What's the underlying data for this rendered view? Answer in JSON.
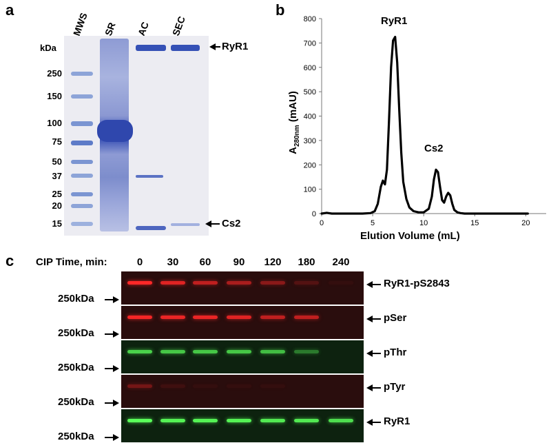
{
  "panel_a": {
    "letter": "a",
    "lanes": [
      "MWS",
      "SR",
      "AC",
      "SEC"
    ],
    "unit_label": "kDa",
    "markers": [
      "250",
      "150",
      "100",
      "75",
      "50",
      "37",
      "25",
      "20",
      "15"
    ],
    "annotations": [
      "RyR1",
      "Cs2"
    ]
  },
  "panel_b": {
    "letter": "b",
    "ylabel_main": "A",
    "ylabel_sub": "280nm",
    "ylabel_unit": " (mAU)",
    "xlabel": "Elution Volume (mL)",
    "peak_labels": [
      "RyR1",
      "Cs2"
    ],
    "chart_data": {
      "type": "line",
      "xlim": [
        0,
        22
      ],
      "ylim": [
        0,
        800
      ],
      "x_ticks": [
        "0",
        "5",
        "10",
        "15",
        "20"
      ],
      "y_ticks": [
        "0",
        "100",
        "200",
        "300",
        "400",
        "500",
        "600",
        "700",
        "800"
      ],
      "series": [
        {
          "x": [
            0,
            0.5,
            1,
            2,
            3,
            4,
            4.8,
            5.2,
            5.5,
            5.8,
            6.0,
            6.2,
            6.4,
            6.6,
            6.8,
            7.0,
            7.2,
            7.4,
            7.6,
            7.8,
            8.0,
            8.3,
            8.6,
            9.0,
            9.5,
            10.0,
            10.5,
            10.8,
            11.0,
            11.2,
            11.4,
            11.6,
            11.8,
            12.0,
            12.2,
            12.4,
            12.6,
            12.8,
            13.0,
            13.3,
            13.6,
            14.0,
            15.0,
            17.0,
            19.0,
            20.2
          ],
          "y": [
            0,
            3,
            0,
            0,
            0,
            0,
            2,
            10,
            40,
            110,
            135,
            120,
            180,
            380,
            600,
            710,
            725,
            620,
            430,
            250,
            130,
            60,
            25,
            10,
            5,
            5,
            20,
            70,
            140,
            180,
            170,
            110,
            55,
            45,
            70,
            85,
            75,
            40,
            15,
            5,
            2,
            0,
            0,
            0,
            0,
            0
          ]
        }
      ]
    }
  },
  "panel_c": {
    "letter": "c",
    "cip_label": "CIP Time, min:",
    "times": [
      "0",
      "30",
      "60",
      "90",
      "120",
      "180",
      "240"
    ],
    "kda_label": "250kDa",
    "blots": [
      {
        "label": "RyR1-pS2843",
        "color": "red",
        "intensities": [
          1.0,
          0.85,
          0.7,
          0.6,
          0.45,
          0.2,
          0.05
        ]
      },
      {
        "label": "pSer",
        "color": "red",
        "intensities": [
          0.95,
          0.9,
          0.9,
          0.85,
          0.7,
          0.7,
          0.0
        ]
      },
      {
        "label": "pThr",
        "color": "green",
        "intensities": [
          0.8,
          0.75,
          0.75,
          0.75,
          0.7,
          0.4,
          0.0
        ]
      },
      {
        "label": "pTyr",
        "color": "red",
        "intensities": [
          0.35,
          0.1,
          0.05,
          0.05,
          0.05,
          0.0,
          0.0
        ]
      },
      {
        "label": "RyR1",
        "color": "green",
        "intensities": [
          1.0,
          0.95,
          0.95,
          0.95,
          0.9,
          0.9,
          0.85
        ]
      }
    ]
  }
}
